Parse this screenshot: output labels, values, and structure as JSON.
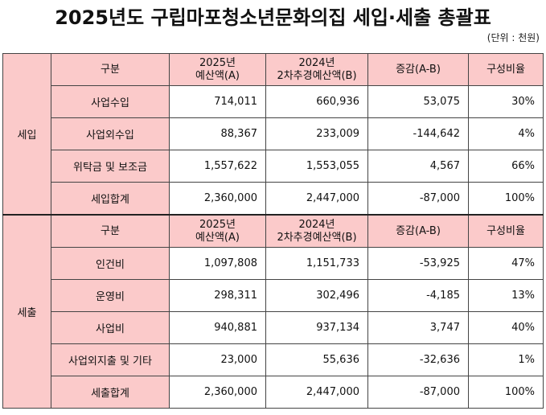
{
  "header": {
    "title": "2025년도 구립마포청소년문화의집 세입·세출 총괄표",
    "unit": "(단위 : 천원)"
  },
  "sections": [
    {
      "label": "세입",
      "columns": [
        [
          "구분"
        ],
        [
          "2025년",
          "예산액(A)"
        ],
        [
          "2024년",
          "2차추경예산액(B)"
        ],
        [
          "증감(A-B)"
        ],
        [
          "구성비율"
        ]
      ],
      "rows": [
        [
          "사업수입",
          "714,011",
          "660,936",
          "53,075",
          "30%"
        ],
        [
          "사업외수입",
          "88,367",
          "233,009",
          "-144,642",
          "4%"
        ],
        [
          "위탁금 및 보조금",
          "1,557,622",
          "1,553,055",
          "4,567",
          "66%"
        ],
        [
          "세입합계",
          "2,360,000",
          "2,447,000",
          "-87,000",
          "100%"
        ]
      ]
    },
    {
      "label": "세출",
      "columns": [
        [
          "구분"
        ],
        [
          "2025년",
          "예산액(A)"
        ],
        [
          "2024년",
          "2차추경예산액(B)"
        ],
        [
          "증감(A-B)"
        ],
        [
          "구성비율"
        ]
      ],
      "rows": [
        [
          "인건비",
          "1,097,808",
          "1,151,733",
          "-53,925",
          "47%"
        ],
        [
          "운영비",
          "298,311",
          "302,496",
          "-4,185",
          "13%"
        ],
        [
          "사업비",
          "940,881",
          "937,134",
          "3,747",
          "40%"
        ],
        [
          "사업외지출 및 기타",
          "23,000",
          "55,636",
          "-32,636",
          "1%"
        ],
        [
          "세출합계",
          "2,360,000",
          "2,447,000",
          "-87,000",
          "100%"
        ]
      ]
    }
  ]
}
